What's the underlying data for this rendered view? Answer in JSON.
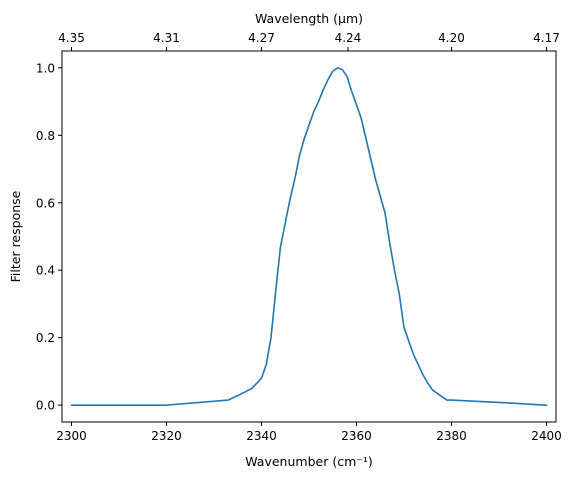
{
  "chart_data": {
    "type": "line",
    "title": "",
    "xlabel": "Wavenumber (cm⁻¹)",
    "ylabel": "Filter response",
    "top_xlabel": "Wavelength (μm)",
    "xlim": [
      2298,
      2402
    ],
    "ylim": [
      -0.05,
      1.05
    ],
    "grid": false,
    "legend": "none",
    "color": "#1f77b4",
    "xticks": [
      2300,
      2320,
      2340,
      2360,
      2380,
      2400
    ],
    "yticks": [
      0.0,
      0.2,
      0.4,
      0.6,
      0.8,
      1.0
    ],
    "top_xticks": [
      {
        "value": 2300.0,
        "label": "4.35"
      },
      {
        "value": 2320.0,
        "label": "4.31"
      },
      {
        "value": 2340.0,
        "label": "4.27"
      },
      {
        "value": 2358.2,
        "label": "4.24"
      },
      {
        "value": 2380.0,
        "label": "4.20"
      },
      {
        "value": 2400.0,
        "label": "4.17"
      }
    ],
    "series": [
      {
        "x": [
          2300,
          2320,
          2333,
          2336,
          2338,
          2340,
          2341,
          2342,
          2343,
          2344,
          2345,
          2346,
          2347,
          2348,
          2349,
          2350,
          2351,
          2352,
          2353,
          2354,
          2355,
          2356,
          2357,
          2358,
          2359,
          2360,
          2361,
          2362,
          2363,
          2364,
          2365,
          2366,
          2367,
          2368,
          2369,
          2370,
          2371,
          2372,
          2373,
          2374,
          2375,
          2376,
          2377,
          2378,
          2379,
          2380,
          2390,
          2400
        ],
        "y": [
          0.0,
          0.0,
          0.015,
          0.035,
          0.05,
          0.08,
          0.12,
          0.2,
          0.34,
          0.47,
          0.54,
          0.61,
          0.67,
          0.74,
          0.79,
          0.83,
          0.87,
          0.9,
          0.935,
          0.965,
          0.99,
          1.0,
          0.995,
          0.975,
          0.93,
          0.89,
          0.85,
          0.79,
          0.73,
          0.67,
          0.62,
          0.57,
          0.48,
          0.4,
          0.33,
          0.23,
          0.19,
          0.15,
          0.12,
          0.09,
          0.065,
          0.045,
          0.035,
          0.025,
          0.015,
          0.015,
          0.008,
          0.0
        ]
      }
    ]
  }
}
